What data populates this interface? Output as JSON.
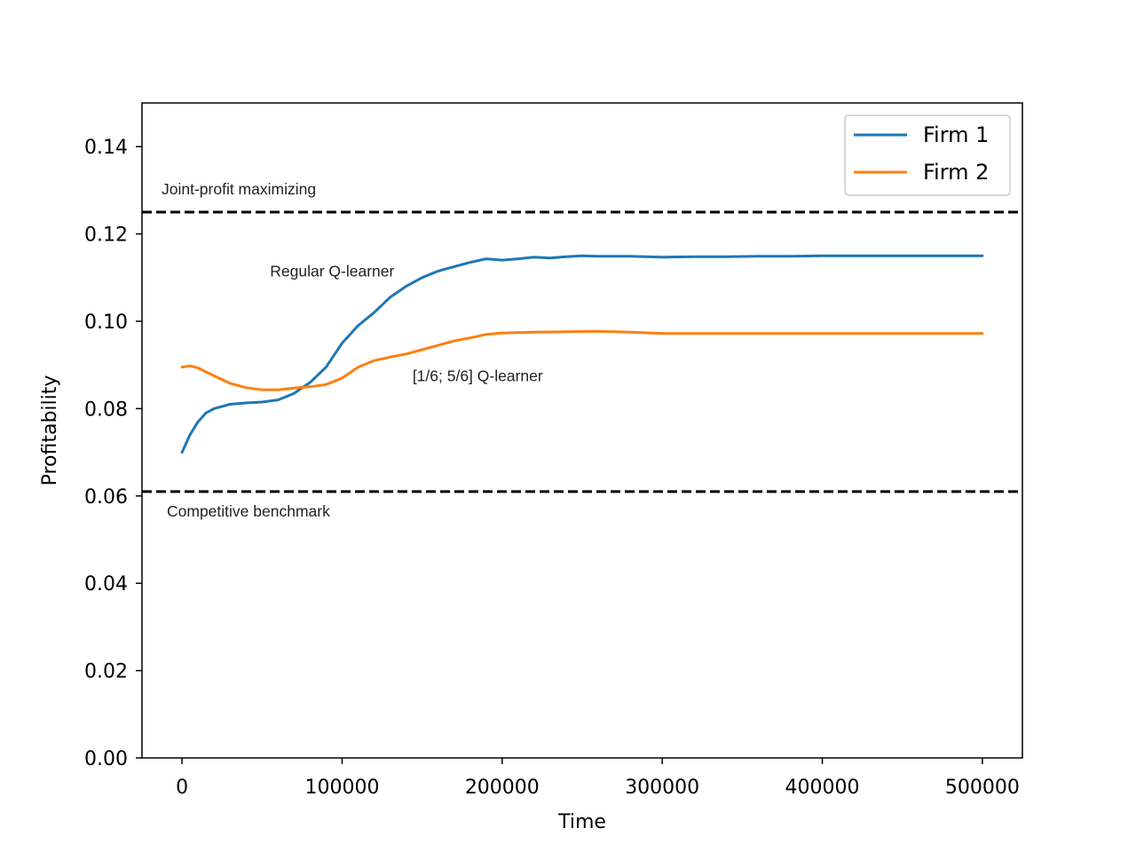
{
  "chart_data": {
    "type": "line",
    "xlabel": "Time",
    "ylabel": "Profitability",
    "xlim": [
      -25000,
      525000
    ],
    "ylim": [
      0.0,
      0.15
    ],
    "xticks": [
      0,
      100000,
      200000,
      300000,
      400000,
      500000
    ],
    "xtick_labels": [
      "0",
      "100000",
      "200000",
      "300000",
      "400000",
      "500000"
    ],
    "yticks": [
      0.0,
      0.02,
      0.04,
      0.06,
      0.08,
      0.1,
      0.12,
      0.14
    ],
    "ytick_labels": [
      "0.00",
      "0.02",
      "0.04",
      "0.06",
      "0.08",
      "0.10",
      "0.12",
      "0.14"
    ],
    "grid": false,
    "legend_position": "top-right",
    "series": [
      {
        "name": "Firm 1",
        "color": "#1f77b4",
        "x": [
          0,
          5000,
          10000,
          15000,
          20000,
          30000,
          40000,
          50000,
          60000,
          70000,
          80000,
          90000,
          100000,
          110000,
          120000,
          130000,
          140000,
          150000,
          160000,
          170000,
          180000,
          190000,
          200000,
          210000,
          220000,
          230000,
          240000,
          250000,
          260000,
          280000,
          300000,
          320000,
          340000,
          360000,
          380000,
          400000,
          420000,
          440000,
          460000,
          480000,
          500000
        ],
        "y": [
          0.07,
          0.074,
          0.077,
          0.079,
          0.08,
          0.081,
          0.0813,
          0.0815,
          0.082,
          0.0835,
          0.086,
          0.0895,
          0.095,
          0.099,
          0.102,
          0.1055,
          0.108,
          0.11,
          0.1115,
          0.1125,
          0.1135,
          0.1143,
          0.114,
          0.1143,
          0.1147,
          0.1145,
          0.1148,
          0.115,
          0.1149,
          0.1149,
          0.1147,
          0.1148,
          0.1148,
          0.1149,
          0.1149,
          0.115,
          0.115,
          0.115,
          0.115,
          0.115,
          0.115
        ]
      },
      {
        "name": "Firm 2",
        "color": "#ff7f0e",
        "x": [
          0,
          5000,
          10000,
          20000,
          30000,
          40000,
          50000,
          60000,
          70000,
          80000,
          90000,
          100000,
          110000,
          120000,
          130000,
          140000,
          150000,
          160000,
          170000,
          180000,
          190000,
          200000,
          220000,
          240000,
          260000,
          280000,
          300000,
          320000,
          340000,
          360000,
          380000,
          400000,
          420000,
          440000,
          460000,
          480000,
          500000
        ],
        "y": [
          0.0895,
          0.0898,
          0.0893,
          0.0875,
          0.0858,
          0.0848,
          0.0843,
          0.0843,
          0.0847,
          0.085,
          0.0855,
          0.087,
          0.0895,
          0.091,
          0.0918,
          0.0925,
          0.0935,
          0.0945,
          0.0955,
          0.0962,
          0.097,
          0.0973,
          0.0975,
          0.0976,
          0.0977,
          0.0975,
          0.0972,
          0.0972,
          0.0972,
          0.0972,
          0.0972,
          0.0972,
          0.0972,
          0.0972,
          0.0972,
          0.0972,
          0.0972
        ]
      }
    ],
    "hlines": [
      {
        "y": 0.125,
        "style": "dashed",
        "color": "#000000",
        "label": "Joint-profit maximizing"
      },
      {
        "y": 0.061,
        "style": "dashed",
        "color": "#000000",
        "label": "Competitive benchmark"
      }
    ],
    "annotations": [
      {
        "text": "Regular Q-learner",
        "x": 55000,
        "y": 0.1115
      },
      {
        "text": "[1/6; 5/6] Q-learner",
        "x": 144000,
        "y": 0.0875
      }
    ]
  }
}
